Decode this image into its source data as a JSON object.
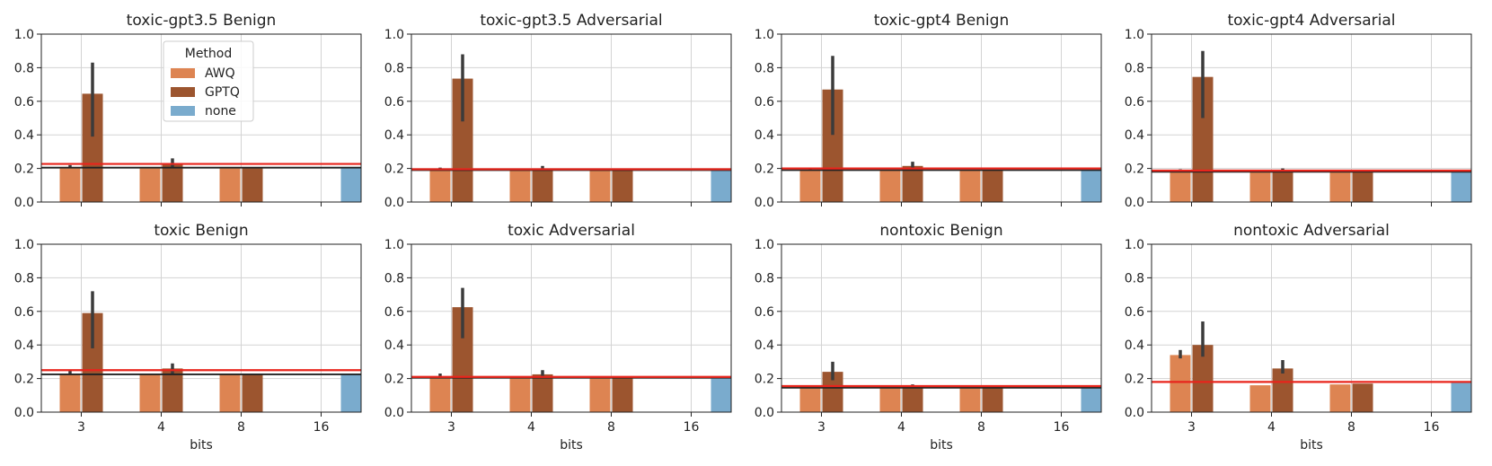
{
  "legend": {
    "title": "Method",
    "entries": [
      {
        "name": "AWQ",
        "color": "#dd8452"
      },
      {
        "name": "GPTQ",
        "color": "#9c552f"
      },
      {
        "name": "none",
        "color": "#7aabcd"
      }
    ]
  },
  "colors": {
    "reference_red": "#e8251c",
    "reference_black": "#222222",
    "errorbar": "#3b3b3b",
    "grid": "#d3d3d3"
  },
  "chart_data": [
    {
      "type": "bar",
      "title": "toxic-gpt3.5 Benign",
      "xlabel": "bits",
      "categories": [
        "3",
        "4",
        "8",
        "16"
      ],
      "ylim": [
        0,
        1
      ],
      "yticks": [
        "0.0",
        "0.2",
        "0.4",
        "0.6",
        "0.8",
        "1.0"
      ],
      "series": [
        {
          "name": "AWQ",
          "values": [
            0.205,
            0.205,
            0.205,
            null
          ],
          "err": [
            0.22,
            0.205,
            0.205,
            null
          ]
        },
        {
          "name": "GPTQ",
          "values": [
            0.645,
            0.23,
            0.205,
            null
          ],
          "err": [
            0.83,
            0.26,
            0.205,
            null
          ],
          "err_low": [
            0.39,
            0.205,
            0.205,
            null
          ]
        },
        {
          "name": "none",
          "values": [
            null,
            null,
            null,
            0.205
          ]
        }
      ],
      "ref_red": 0.227,
      "ref_black": 0.205
    },
    {
      "type": "bar",
      "title": "toxic-gpt3.5 Adversarial",
      "xlabel": "bits",
      "categories": [
        "3",
        "4",
        "8",
        "16"
      ],
      "ylim": [
        0,
        1
      ],
      "yticks": [
        "0.0",
        "0.2",
        "0.4",
        "0.6",
        "0.8",
        "1.0"
      ],
      "series": [
        {
          "name": "AWQ",
          "values": [
            0.19,
            0.19,
            0.19,
            null
          ],
          "err": [
            0.205,
            0.19,
            0.19,
            null
          ]
        },
        {
          "name": "GPTQ",
          "values": [
            0.735,
            0.195,
            0.19,
            null
          ],
          "err": [
            0.88,
            0.215,
            0.19,
            null
          ],
          "err_low": [
            0.48,
            0.19,
            0.19,
            null
          ]
        },
        {
          "name": "none",
          "values": [
            null,
            null,
            null,
            0.19
          ]
        }
      ],
      "ref_red": 0.195,
      "ref_black": 0.19
    },
    {
      "type": "bar",
      "title": "toxic-gpt4 Benign",
      "xlabel": "bits",
      "categories": [
        "3",
        "4",
        "8",
        "16"
      ],
      "ylim": [
        0,
        1
      ],
      "yticks": [
        "0.0",
        "0.2",
        "0.4",
        "0.6",
        "0.8",
        "1.0"
      ],
      "series": [
        {
          "name": "AWQ",
          "values": [
            0.19,
            0.19,
            0.19,
            null
          ],
          "err": [
            0.205,
            0.19,
            0.19,
            null
          ]
        },
        {
          "name": "GPTQ",
          "values": [
            0.67,
            0.215,
            0.19,
            null
          ],
          "err": [
            0.87,
            0.24,
            0.19,
            null
          ],
          "err_low": [
            0.4,
            0.19,
            0.19,
            null
          ]
        },
        {
          "name": "none",
          "values": [
            null,
            null,
            null,
            0.19
          ]
        }
      ],
      "ref_red": 0.2,
      "ref_black": 0.19
    },
    {
      "type": "bar",
      "title": "toxic-gpt4 Adversarial",
      "xlabel": "bits",
      "categories": [
        "3",
        "4",
        "8",
        "16"
      ],
      "ylim": [
        0,
        1
      ],
      "yticks": [
        "0.0",
        "0.2",
        "0.4",
        "0.6",
        "0.8",
        "1.0"
      ],
      "series": [
        {
          "name": "AWQ",
          "values": [
            0.18,
            0.18,
            0.18,
            null
          ],
          "err": [
            0.195,
            0.18,
            0.18,
            null
          ]
        },
        {
          "name": "GPTQ",
          "values": [
            0.745,
            0.185,
            0.18,
            null
          ],
          "err": [
            0.9,
            0.2,
            0.18,
            null
          ],
          "err_low": [
            0.5,
            0.18,
            0.18,
            null
          ]
        },
        {
          "name": "none",
          "values": [
            null,
            null,
            null,
            0.18
          ]
        }
      ],
      "ref_red": 0.187,
      "ref_black": 0.18
    },
    {
      "type": "bar",
      "title": "toxic Benign",
      "xlabel": "bits",
      "categories": [
        "3",
        "4",
        "8",
        "16"
      ],
      "ylim": [
        0,
        1
      ],
      "yticks": [
        "0.0",
        "0.2",
        "0.4",
        "0.6",
        "0.8",
        "1.0"
      ],
      "series": [
        {
          "name": "AWQ",
          "values": [
            0.225,
            0.225,
            0.225,
            null
          ],
          "err": [
            0.25,
            0.225,
            0.225,
            null
          ]
        },
        {
          "name": "GPTQ",
          "values": [
            0.59,
            0.26,
            0.225,
            null
          ],
          "err": [
            0.72,
            0.29,
            0.225,
            null
          ],
          "err_low": [
            0.38,
            0.225,
            0.225,
            null
          ]
        },
        {
          "name": "none",
          "values": [
            null,
            null,
            null,
            0.225
          ]
        }
      ],
      "ref_red": 0.25,
      "ref_black": 0.225
    },
    {
      "type": "bar",
      "title": "toxic Adversarial",
      "xlabel": "bits",
      "categories": [
        "3",
        "4",
        "8",
        "16"
      ],
      "ylim": [
        0,
        1
      ],
      "yticks": [
        "0.0",
        "0.2",
        "0.4",
        "0.6",
        "0.8",
        "1.0"
      ],
      "series": [
        {
          "name": "AWQ",
          "values": [
            0.205,
            0.205,
            0.205,
            null
          ],
          "err": [
            0.23,
            0.205,
            0.205,
            null
          ]
        },
        {
          "name": "GPTQ",
          "values": [
            0.625,
            0.225,
            0.205,
            null
          ],
          "err": [
            0.74,
            0.25,
            0.205,
            null
          ],
          "err_low": [
            0.44,
            0.205,
            0.205,
            null
          ]
        },
        {
          "name": "none",
          "values": [
            null,
            null,
            null,
            0.205
          ]
        }
      ],
      "ref_red": 0.21,
      "ref_black": 0.205
    },
    {
      "type": "bar",
      "title": "nontoxic Benign",
      "xlabel": "bits",
      "categories": [
        "3",
        "4",
        "8",
        "16"
      ],
      "ylim": [
        0,
        1
      ],
      "yticks": [
        "0.0",
        "0.2",
        "0.4",
        "0.6",
        "0.8",
        "1.0"
      ],
      "series": [
        {
          "name": "AWQ",
          "values": [
            0.145,
            0.145,
            0.145,
            null
          ],
          "err": [
            0.16,
            0.145,
            0.145,
            null
          ]
        },
        {
          "name": "GPTQ",
          "values": [
            0.24,
            0.15,
            0.145,
            null
          ],
          "err": [
            0.3,
            0.165,
            0.145,
            null
          ],
          "err_low": [
            0.19,
            0.145,
            0.145,
            null
          ]
        },
        {
          "name": "none",
          "values": [
            null,
            null,
            null,
            0.145
          ]
        }
      ],
      "ref_red": 0.155,
      "ref_black": 0.145
    },
    {
      "type": "bar",
      "title": "nontoxic Adversarial",
      "xlabel": "bits",
      "categories": [
        "3",
        "4",
        "8",
        "16"
      ],
      "ylim": [
        0,
        1
      ],
      "yticks": [
        "0.0",
        "0.2",
        "0.4",
        "0.6",
        "0.8",
        "1.0"
      ],
      "series": [
        {
          "name": "AWQ",
          "values": [
            0.34,
            0.16,
            0.165,
            null
          ],
          "err": [
            0.37,
            0.16,
            0.165,
            null
          ],
          "err_low": [
            0.32,
            0.16,
            0.165,
            null
          ]
        },
        {
          "name": "GPTQ",
          "values": [
            0.4,
            0.26,
            0.17,
            null
          ],
          "err": [
            0.54,
            0.31,
            0.17,
            null
          ],
          "err_low": [
            0.33,
            0.23,
            0.17,
            null
          ]
        },
        {
          "name": "none",
          "values": [
            null,
            null,
            null,
            0.175
          ]
        }
      ],
      "ref_red": 0.18,
      "ref_black": null
    }
  ]
}
